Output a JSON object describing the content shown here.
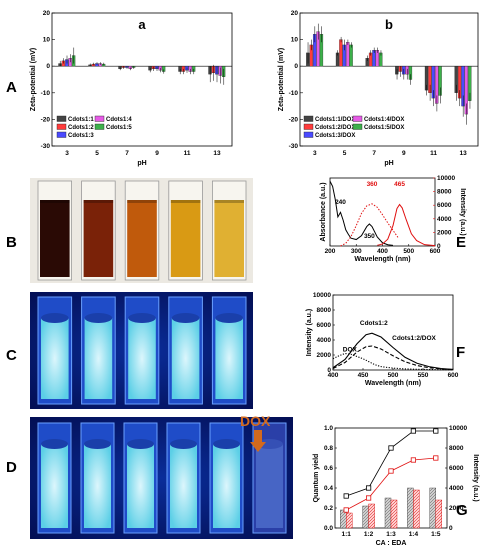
{
  "panel_labels": {
    "A": "A",
    "B": "B",
    "C": "C",
    "D": "D",
    "E": "E",
    "F": "F",
    "G": "G"
  },
  "dox_label": "DOX",
  "colors": {
    "s1": "#444444",
    "s2": "#ff3b3b",
    "s3": "#4a4aff",
    "s4": "#e65be6",
    "s5": "#3cb04a",
    "red": "#e01010",
    "dox_arrow": "#d2691e"
  },
  "photo_B": {
    "liquids": [
      "#2a0a05",
      "#7a2208",
      "#c05a0c",
      "#d99a14",
      "#e0b032"
    ]
  },
  "photo_C": {
    "vials": 5
  },
  "photo_D": {
    "vials": 6
  },
  "chart_data": [
    {
      "id": "Aa",
      "type": "bar",
      "subtitle": "a",
      "xlabel": "pH",
      "ylabel": "Zeta-potential (mV)",
      "ylim": [
        -30,
        20
      ],
      "yticks": [
        -30,
        -20,
        -10,
        0,
        10,
        20
      ],
      "categories": [
        "3",
        "5",
        "7",
        "9",
        "11",
        "13"
      ],
      "series": [
        {
          "name": "Cdots1:1",
          "values": [
            1,
            0.5,
            -1,
            -1.5,
            -2,
            -3
          ],
          "err": [
            1,
            0.5,
            0.5,
            0.8,
            1,
            3
          ]
        },
        {
          "name": "Cdots1:2",
          "values": [
            2,
            0.8,
            -0.5,
            -1,
            -2,
            -2.5
          ],
          "err": [
            1,
            0.5,
            0.5,
            0.8,
            1,
            3
          ]
        },
        {
          "name": "Cdots1:3",
          "values": [
            2.5,
            1,
            -0.5,
            -1,
            -1.5,
            -3
          ],
          "err": [
            1.5,
            0.5,
            0.5,
            0.8,
            1,
            3
          ]
        },
        {
          "name": "Cdots1:4",
          "values": [
            3,
            1,
            -1,
            -1.5,
            -2,
            -3.5
          ],
          "err": [
            1.5,
            0.5,
            0.5,
            0.8,
            1,
            3
          ]
        },
        {
          "name": "Cdots1:5",
          "values": [
            4,
            0.8,
            -0.5,
            -2,
            -2,
            -4
          ],
          "err": [
            3,
            0.5,
            0.5,
            0.8,
            1,
            3
          ]
        }
      ]
    },
    {
      "id": "Ab",
      "type": "bar",
      "subtitle": "b",
      "xlabel": "pH",
      "ylabel": "Zeta-potential (mV)",
      "ylim": [
        -30,
        20
      ],
      "yticks": [
        -30,
        -20,
        -10,
        0,
        10,
        20
      ],
      "categories": [
        "3",
        "5",
        "7",
        "9",
        "11",
        "13"
      ],
      "series": [
        {
          "name": "Cdots1:1/DOX",
          "values": [
            5,
            5,
            3,
            -3,
            -9,
            -10
          ],
          "err": [
            4,
            1,
            1,
            2,
            2,
            3
          ]
        },
        {
          "name": "Cdots1:2/DOX",
          "values": [
            8,
            10,
            5,
            -2,
            -10,
            -12
          ],
          "err": [
            2,
            1,
            1,
            2,
            3,
            3
          ]
        },
        {
          "name": "Cdots1:3/DOX",
          "values": [
            12,
            8,
            6,
            -3,
            -12,
            -15
          ],
          "err": [
            3,
            2,
            1,
            2,
            3,
            4
          ]
        },
        {
          "name": "Cdots1:4/DOX",
          "values": [
            13,
            9,
            6,
            -3,
            -14,
            -18
          ],
          "err": [
            3,
            1,
            1,
            2,
            3,
            4
          ]
        },
        {
          "name": "Cdots1:5/DOX",
          "values": [
            12,
            8,
            5,
            -5,
            -11,
            -13
          ],
          "err": [
            3,
            1,
            1,
            2,
            3,
            3
          ]
        }
      ]
    },
    {
      "id": "E",
      "type": "line",
      "xlabel": "Wavelength (nm)",
      "ylabel": "Absorbance (a.u.)",
      "y2label": "Intensity (a.u.)",
      "xlim": [
        200,
        600
      ],
      "xticks": [
        200,
        300,
        400,
        500,
        600
      ],
      "ylim2": [
        0,
        10000
      ],
      "yticks2": [
        0,
        2000,
        4000,
        6000,
        8000,
        10000
      ],
      "annotations": [
        {
          "text": "240",
          "x": 240,
          "y": 0.62,
          "color": "#000"
        },
        {
          "text": "350",
          "x": 350,
          "y": 0.12,
          "color": "#000"
        },
        {
          "text": "360",
          "x": 360,
          "y": 0.88,
          "color": "#e01010"
        },
        {
          "text": "465",
          "x": 465,
          "y": 0.88,
          "color": "#e01010"
        }
      ],
      "series": [
        {
          "name": "absorbance",
          "style": "solid",
          "color": "#000",
          "axis": "left",
          "x": [
            200,
            210,
            220,
            230,
            240,
            250,
            260,
            270,
            280,
            300,
            320,
            340,
            350,
            360,
            380,
            400,
            420,
            440
          ],
          "y": [
            1.0,
            0.92,
            0.72,
            0.45,
            0.52,
            0.4,
            0.25,
            0.18,
            0.12,
            0.1,
            0.16,
            0.3,
            0.34,
            0.3,
            0.14,
            0.05,
            0.02,
            0.01
          ]
        },
        {
          "name": "excitation",
          "style": "dotted",
          "color": "#e01010",
          "axis": "right",
          "x": [
            240,
            260,
            280,
            300,
            320,
            340,
            360,
            380,
            400,
            420,
            440,
            460
          ],
          "y": [
            0.0,
            0.4,
            1.4,
            3.0,
            4.8,
            5.9,
            6.2,
            5.7,
            4.6,
            3.4,
            2.3,
            1.2
          ]
        },
        {
          "name": "emission",
          "style": "solid",
          "color": "#e01010",
          "axis": "right",
          "x": [
            380,
            400,
            420,
            440,
            455,
            465,
            475,
            490,
            510,
            530,
            560,
            600
          ],
          "y": [
            0.1,
            0.3,
            1.0,
            3.0,
            5.5,
            6.1,
            5.6,
            3.9,
            1.8,
            0.8,
            0.2,
            0.05
          ]
        }
      ]
    },
    {
      "id": "F",
      "type": "line",
      "xlabel": "Wavelength (nm)",
      "ylabel": "Intensity (a.u.)",
      "xlim": [
        400,
        600
      ],
      "xticks": [
        400,
        450,
        500,
        550,
        600
      ],
      "ylim": [
        0,
        10000
      ],
      "yticks": [
        0,
        2000,
        4000,
        6000,
        8000,
        10000
      ],
      "annotations": [
        {
          "text": "Cdots1:2",
          "x": 468,
          "y": 6000
        },
        {
          "text": "Cdots1:2/DOX",
          "x": 535,
          "y": 4000
        },
        {
          "text": "DOX",
          "x": 428,
          "y": 2500
        }
      ],
      "series": [
        {
          "name": "Cdots1:2",
          "style": "solid",
          "color": "#000",
          "x": [
            400,
            420,
            440,
            455,
            465,
            480,
            500,
            520,
            540,
            560,
            580,
            600
          ],
          "y": [
            300,
            1400,
            3500,
            4700,
            4900,
            4400,
            3000,
            1700,
            900,
            450,
            200,
            80
          ]
        },
        {
          "name": "Cdots1:2/DOX",
          "style": "dashed",
          "color": "#000",
          "x": [
            400,
            420,
            440,
            455,
            465,
            480,
            500,
            520,
            540,
            560,
            580,
            600
          ],
          "y": [
            200,
            1000,
            2400,
            3100,
            3200,
            2800,
            1900,
            1100,
            600,
            300,
            150,
            60
          ]
        },
        {
          "name": "DOX",
          "style": "dotted",
          "color": "#000",
          "x": [
            400,
            410,
            420,
            430,
            440,
            450,
            460,
            470,
            480,
            500,
            520,
            540,
            560,
            580,
            600
          ],
          "y": [
            1500,
            1900,
            2200,
            2100,
            1800,
            1500,
            1100,
            700,
            450,
            250,
            150,
            100,
            60,
            40,
            20
          ]
        }
      ]
    },
    {
      "id": "G",
      "type": "bar",
      "xlabel": "CA : EDA",
      "ylabel": "Quantum yield",
      "y2label": "Intensity (a.u.)",
      "categories": [
        "1:1",
        "1:2",
        "1:3",
        "1:4",
        "1:5"
      ],
      "ylim": [
        0,
        1.0
      ],
      "yticks": [
        0.0,
        0.2,
        0.4,
        0.6,
        0.8,
        1.0
      ],
      "ylim2": [
        0,
        10000
      ],
      "yticks2": [
        0,
        2000,
        4000,
        6000,
        8000,
        10000
      ],
      "series": [
        {
          "name": "qy-bar",
          "color": "#bdbdbd",
          "values": [
            0.18,
            0.22,
            0.3,
            0.4,
            0.4
          ]
        },
        {
          "name": "int-bar",
          "color": "#ff8a8a",
          "values": [
            0.15,
            0.24,
            0.28,
            0.38,
            0.28
          ]
        },
        {
          "name": "qy-line",
          "color": "#000",
          "values": [
            0.32,
            0.4,
            0.8,
            0.97,
            0.97
          ]
        },
        {
          "name": "int-line",
          "color": "#e01010",
          "values": [
            0.18,
            0.3,
            0.57,
            0.68,
            0.7
          ]
        }
      ]
    }
  ]
}
